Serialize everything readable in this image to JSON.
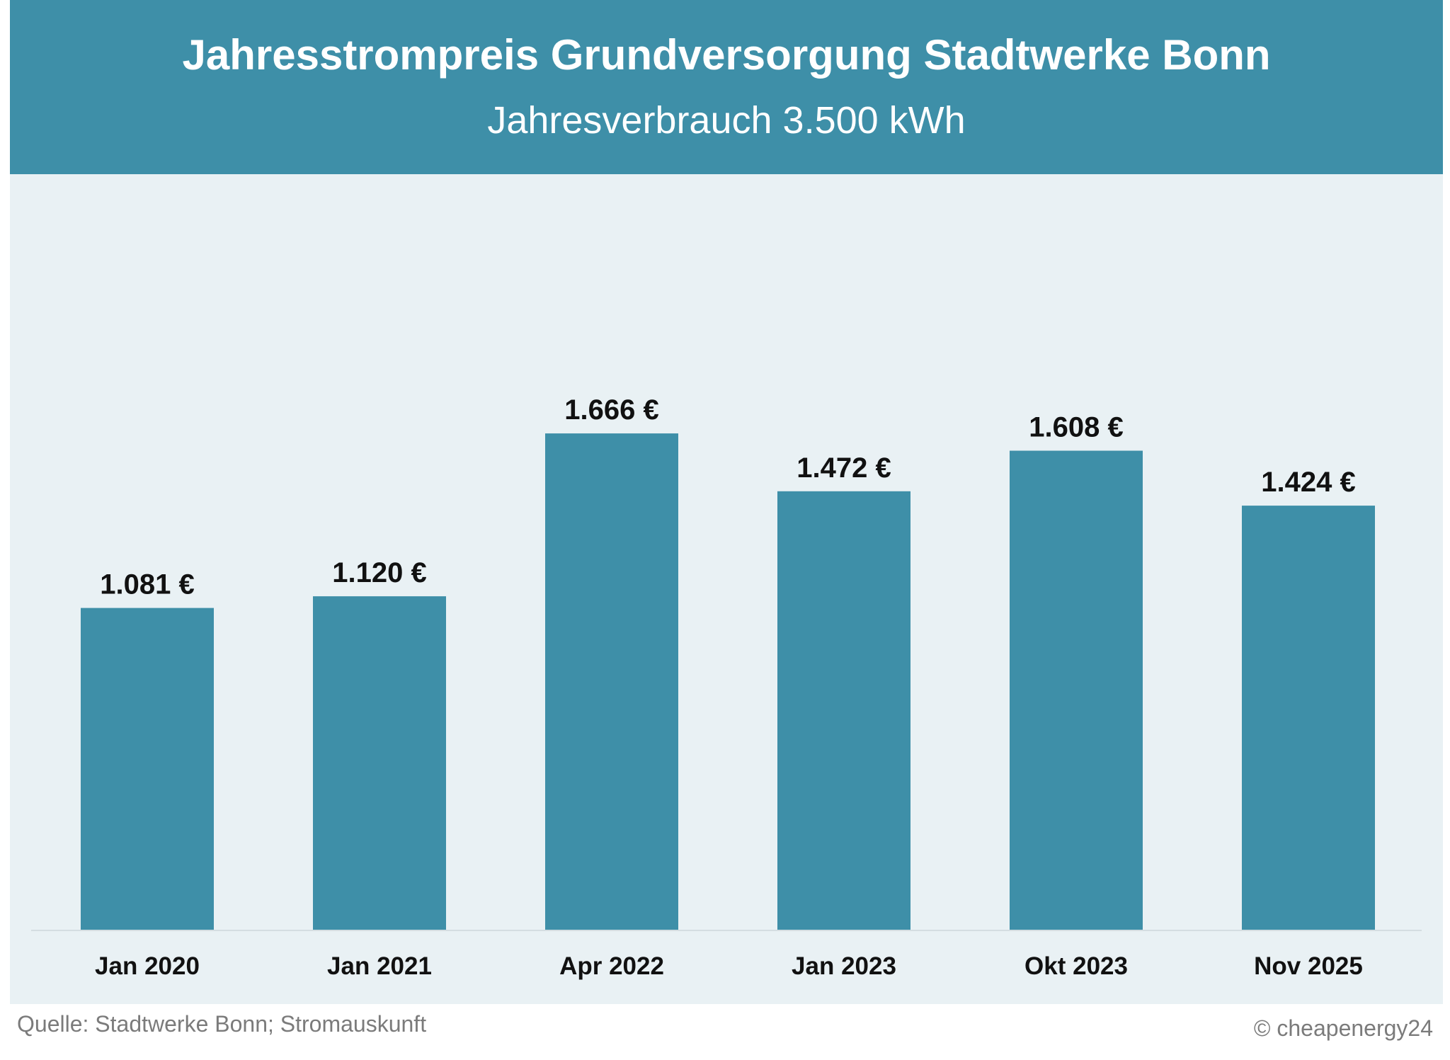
{
  "header": {
    "title": "Jahresstrompreis Grundversorgung Stadtwerke Bonn",
    "subtitle": "Jahresverbrauch 3.500 kWh"
  },
  "chart_data": {
    "type": "bar",
    "title": "Jahresstrompreis Grundversorgung Stadtwerke Bonn",
    "subtitle": "Jahresverbrauch 3.500 kWh",
    "categories": [
      "Jan 2020",
      "Jan 2021",
      "Apr 2022",
      "Jan 2023",
      "Okt 2023",
      "Nov 2025"
    ],
    "values": [
      1081,
      1120,
      1666,
      1472,
      1608,
      1424
    ],
    "data_labels": [
      "1.081 €",
      "1.120 €",
      "1.666 €",
      "1.472 €",
      "1.608 €",
      "1.424 €"
    ],
    "ylim": [
      0,
      3000
    ],
    "grid": false,
    "legend": "none",
    "colors": {
      "bar": "#3e8fa8",
      "header": "#3e8fa8",
      "plot_background": "#e9f1f4",
      "axis_line": "#d4dde1"
    }
  },
  "footer": {
    "source": "Quelle: Stadtwerke Bonn; Stromauskunft",
    "copyright": "© cheapenergy24"
  }
}
